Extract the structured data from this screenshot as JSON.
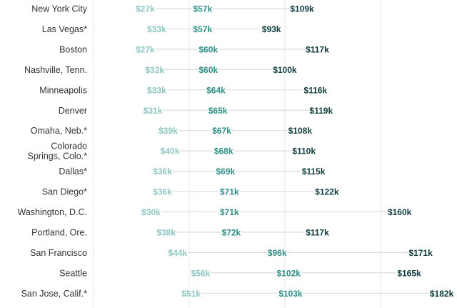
{
  "colors": {
    "low": "#8fc6c2",
    "median": "#2f8f87",
    "high": "#0f3b3d",
    "connector": "#d6dde0",
    "grid": "#e3e7ea",
    "label": "#333333"
  },
  "chart_data": {
    "type": "dot-range",
    "x_range": [
      0,
      190
    ],
    "x_unit": "thousands of dollars",
    "gridlines": [
      0,
      50,
      100,
      150
    ],
    "series": [
      {
        "name": "",
        "key": "low"
      },
      {
        "name": "",
        "key": "median"
      },
      {
        "name": "",
        "key": "high"
      }
    ],
    "rows": [
      {
        "city": "New York City",
        "low": 27,
        "median": 57,
        "high": 109,
        "low_label": "$27k",
        "median_label": "$57k",
        "high_label": "$109k"
      },
      {
        "city": "Las Vegas*",
        "low": 33,
        "median": 57,
        "high": 93,
        "low_label": "$33k",
        "median_label": "$57k",
        "high_label": "$93k"
      },
      {
        "city": "Boston",
        "low": 27,
        "median": 60,
        "high": 117,
        "low_label": "$27k",
        "median_label": "$60k",
        "high_label": "$117k"
      },
      {
        "city": "Nashville, Tenn.",
        "low": 32,
        "median": 60,
        "high": 100,
        "low_label": "$32k",
        "median_label": "$60k",
        "high_label": "$100k"
      },
      {
        "city": "Minneapolis",
        "low": 33,
        "median": 64,
        "high": 116,
        "low_label": "$33k",
        "median_label": "$64k",
        "high_label": "$116k"
      },
      {
        "city": "Denver",
        "low": 31,
        "median": 65,
        "high": 119,
        "low_label": "$31k",
        "median_label": "$65k",
        "high_label": "$119k"
      },
      {
        "city": "Omaha, Neb.*",
        "low": 39,
        "median": 67,
        "high": 108,
        "low_label": "$39k",
        "median_label": "$67k",
        "high_label": "$108k"
      },
      {
        "city": "Colorado Springs, Colo.*",
        "city_lines": [
          "Colorado",
          "Springs, Colo.*"
        ],
        "low": 40,
        "median": 68,
        "high": 110,
        "low_label": "$40k",
        "median_label": "$68k",
        "high_label": "$110k"
      },
      {
        "city": "Dallas*",
        "low": 36,
        "median": 69,
        "high": 115,
        "low_label": "$36k",
        "median_label": "$69k",
        "high_label": "$115k"
      },
      {
        "city": "San Diego*",
        "low": 36,
        "median": 71,
        "high": 122,
        "low_label": "$36k",
        "median_label": "$71k",
        "high_label": "$122k"
      },
      {
        "city": "Washington, D.C.",
        "low": 30,
        "median": 71,
        "high": 160,
        "low_label": "$30k",
        "median_label": "$71k",
        "high_label": "$160k"
      },
      {
        "city": "Portland, Ore.",
        "low": 38,
        "median": 72,
        "high": 117,
        "low_label": "$38k",
        "median_label": "$72k",
        "high_label": "$117k"
      },
      {
        "city": "San Francisco",
        "low": 44,
        "median": 96,
        "high": 171,
        "low_label": "$44k",
        "median_label": "$96k",
        "high_label": "$171k"
      },
      {
        "city": "Seattle",
        "low": 56,
        "median": 102,
        "high": 165,
        "low_label": "$56k",
        "median_label": "$102k",
        "high_label": "$165k"
      },
      {
        "city": "San Jose, Calif.*",
        "low": 51,
        "median": 103,
        "high": 182,
        "low_label": "$51k",
        "median_label": "$103k",
        "high_label": "$182k"
      }
    ]
  }
}
